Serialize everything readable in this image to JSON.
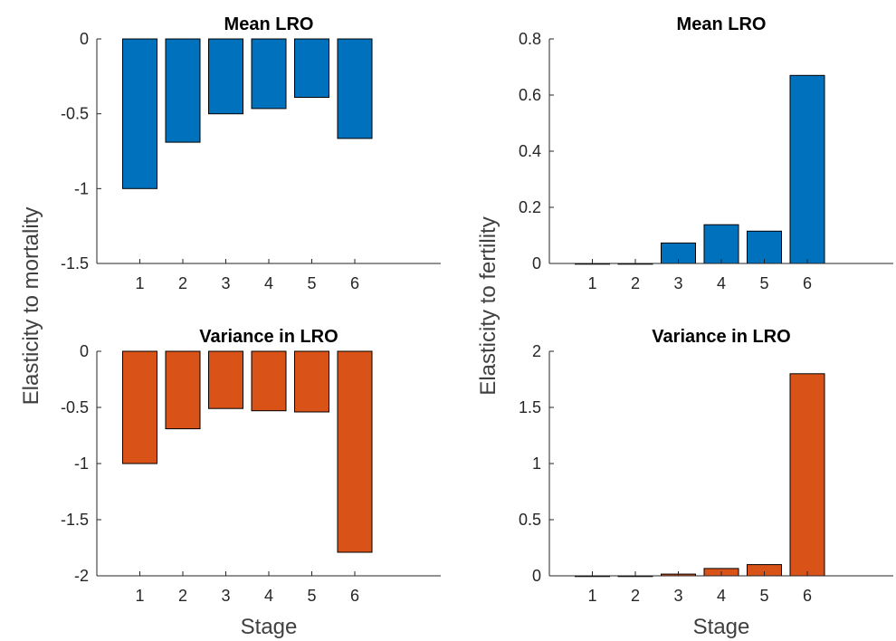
{
  "figure": {
    "ylabel_left": "Elasticity to mortality",
    "ylabel_right": "Elasticity to fertility",
    "xlabel": "Stage"
  },
  "colors": {
    "mean": "#0072BD",
    "variance": "#D95319",
    "axis": "#262626"
  },
  "chart_data": [
    {
      "type": "bar",
      "title": "Mean LRO",
      "xlabel": "",
      "ylabel": "",
      "categories": [
        "1",
        "2",
        "3",
        "4",
        "5",
        "6"
      ],
      "values": [
        -1.0,
        -0.69,
        -0.5,
        -0.465,
        -0.39,
        -0.665
      ],
      "xlim": [
        0,
        8
      ],
      "ylim": [
        -1.5,
        0
      ],
      "yticks": [
        0,
        -0.5,
        -1,
        -1.5
      ],
      "ytick_labels": [
        "0",
        "-0.5",
        "-1",
        "-1.5"
      ],
      "color": "mean"
    },
    {
      "type": "bar",
      "title": "Mean LRO",
      "xlabel": "",
      "ylabel": "",
      "categories": [
        "1",
        "2",
        "3",
        "4",
        "5",
        "6"
      ],
      "values": [
        0.0,
        0.0,
        0.073,
        0.138,
        0.115,
        0.67
      ],
      "xlim": [
        0,
        8
      ],
      "ylim": [
        0,
        0.8
      ],
      "yticks": [
        0,
        0.2,
        0.4,
        0.6,
        0.8
      ],
      "ytick_labels": [
        "0",
        "0.2",
        "0.4",
        "0.6",
        "0.8"
      ],
      "color": "mean"
    },
    {
      "type": "bar",
      "title": "Variance in LRO",
      "xlabel": "Stage",
      "ylabel": "",
      "categories": [
        "1",
        "2",
        "3",
        "4",
        "5",
        "6"
      ],
      "values": [
        -1.0,
        -0.69,
        -0.51,
        -0.53,
        -0.54,
        -1.79
      ],
      "xlim": [
        0,
        8
      ],
      "ylim": [
        -2,
        0
      ],
      "yticks": [
        0,
        -0.5,
        -1,
        -1.5,
        -2
      ],
      "ytick_labels": [
        "0",
        "-0.5",
        "-1",
        "-1.5",
        "-2"
      ],
      "color": "variance"
    },
    {
      "type": "bar",
      "title": "Variance in LRO",
      "xlabel": "Stage",
      "ylabel": "",
      "categories": [
        "1",
        "2",
        "3",
        "4",
        "5",
        "6"
      ],
      "values": [
        0.0,
        0.0,
        0.015,
        0.065,
        0.1,
        1.8
      ],
      "xlim": [
        0,
        8
      ],
      "ylim": [
        0,
        2
      ],
      "yticks": [
        0,
        0.5,
        1,
        1.5,
        2
      ],
      "ytick_labels": [
        "0",
        "0.5",
        "1",
        "1.5",
        "2"
      ],
      "color": "variance"
    }
  ]
}
